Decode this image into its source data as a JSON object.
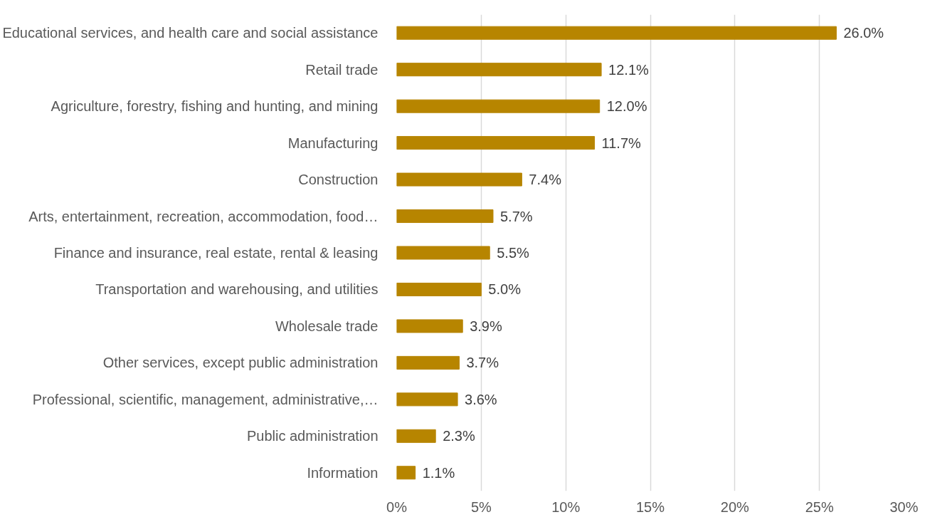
{
  "chart_data": {
    "type": "bar",
    "orientation": "horizontal",
    "categories": [
      "Educational services, and health care and social assistance",
      "Retail trade",
      "Agriculture, forestry, fishing and hunting, and mining",
      "Manufacturing",
      "Construction",
      "Arts, entertainment, recreation, accommodation, food…",
      "Finance and insurance, real estate, rental & leasing",
      "Transportation and warehousing, and utilities",
      "Wholesale trade",
      "Other services, except public administration",
      "Professional, scientific, management, administrative,…",
      "Public administration",
      "Information"
    ],
    "values": [
      26.0,
      12.1,
      12.0,
      11.7,
      7.4,
      5.7,
      5.5,
      5.0,
      3.9,
      3.7,
      3.6,
      2.3,
      1.1
    ],
    "value_labels": [
      "26.0%",
      "12.1%",
      "12.0%",
      "11.7%",
      "7.4%",
      "5.7%",
      "5.5%",
      "5.0%",
      "3.9%",
      "3.7%",
      "3.6%",
      "2.3%",
      "1.1%"
    ],
    "color": "#b78500",
    "xlim": [
      0,
      30
    ],
    "xticks": [
      {
        "value": 0,
        "label": "0%"
      },
      {
        "value": 5,
        "label": "5%"
      },
      {
        "value": 10,
        "label": "10%"
      },
      {
        "value": 15,
        "label": "15%"
      },
      {
        "value": 20,
        "label": "20%"
      },
      {
        "value": 25,
        "label": "25%"
      },
      {
        "value": 30,
        "label": "30%"
      }
    ],
    "grid": "x"
  }
}
